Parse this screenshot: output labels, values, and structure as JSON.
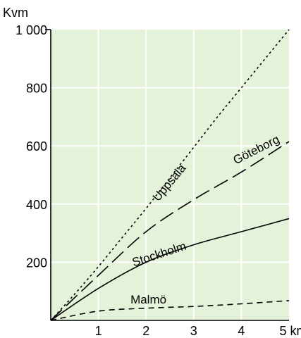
{
  "chart_data": {
    "type": "line",
    "ylabel": "Kvm",
    "xlim": [
      0,
      5
    ],
    "ylim": [
      0,
      1000
    ],
    "x_ticks": [
      {
        "value": 1,
        "label": "1"
      },
      {
        "value": 2,
        "label": "2"
      },
      {
        "value": 3,
        "label": "3"
      },
      {
        "value": 4,
        "label": "4"
      },
      {
        "value": 5,
        "label": "5 km"
      }
    ],
    "y_ticks": [
      {
        "value": 200,
        "label": "200"
      },
      {
        "value": 400,
        "label": "400"
      },
      {
        "value": 600,
        "label": "600"
      },
      {
        "value": 800,
        "label": "800"
      },
      {
        "value": 1000,
        "label": "1 000"
      }
    ],
    "grid": true,
    "background_color": "#e3f2d8",
    "grid_color": "#ffffff",
    "series": [
      {
        "name": "Uppsala",
        "dash": "dotted",
        "points": [
          [
            0,
            0
          ],
          [
            0.5,
            90
          ],
          [
            1,
            185
          ],
          [
            1.5,
            285
          ],
          [
            2,
            385
          ],
          [
            2.5,
            490
          ],
          [
            3,
            595
          ],
          [
            3.5,
            700
          ],
          [
            4,
            800
          ],
          [
            4.5,
            900
          ],
          [
            5,
            1000
          ]
        ],
        "label_at": [
          2.55,
          465
        ],
        "label_angle": -50
      },
      {
        "name": "Göteborg",
        "dash": "longdash",
        "points": [
          [
            0,
            0
          ],
          [
            1,
            155
          ],
          [
            2,
            305
          ],
          [
            3,
            415
          ],
          [
            4,
            510
          ],
          [
            5,
            615
          ]
        ],
        "label_at": [
          4.35,
          575
        ],
        "label_angle": -27
      },
      {
        "name": "Stockholm",
        "dash": "solid",
        "points": [
          [
            0,
            0
          ],
          [
            1,
            110
          ],
          [
            2,
            200
          ],
          [
            3,
            260
          ],
          [
            4,
            305
          ],
          [
            5,
            350
          ]
        ],
        "label_at": [
          2.3,
          215
        ],
        "label_angle": -18
      },
      {
        "name": "Malmö",
        "dash": "shortdash",
        "points": [
          [
            0,
            0
          ],
          [
            1,
            32
          ],
          [
            2,
            42
          ],
          [
            3,
            48
          ],
          [
            4,
            57
          ],
          [
            5,
            68
          ]
        ],
        "label_at": [
          2.05,
          58
        ],
        "label_angle": 0
      }
    ]
  }
}
